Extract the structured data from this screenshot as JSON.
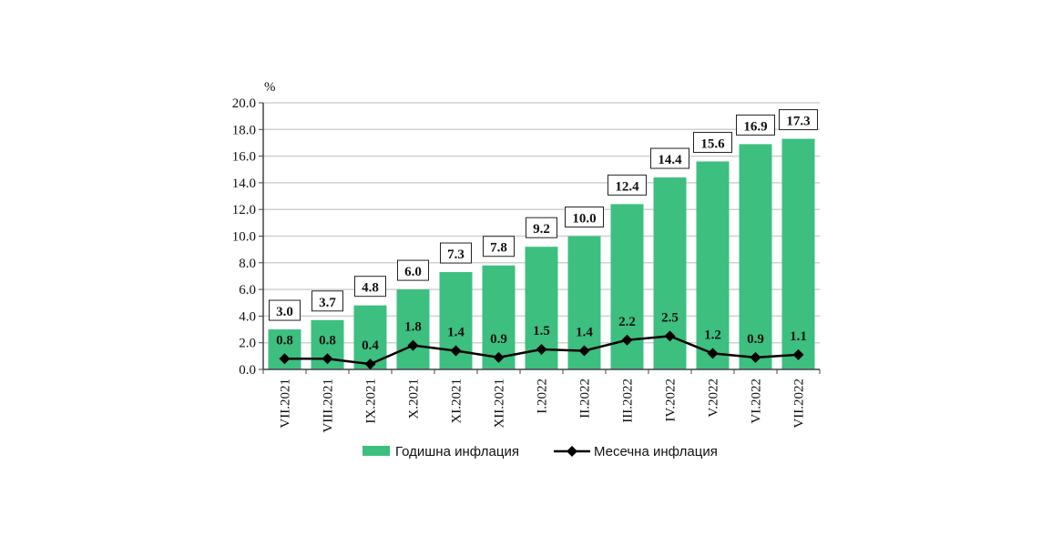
{
  "chart_data": {
    "type": "bar",
    "ylabel": "%",
    "ylim": [
      0,
      20
    ],
    "yticks": [
      "0.0",
      "2.0",
      "4.0",
      "6.0",
      "8.0",
      "10.0",
      "12.0",
      "14.0",
      "16.0",
      "18.0",
      "20.0"
    ],
    "grid": true,
    "legend_position": "bottom",
    "categories": [
      "VII.2021",
      "VIII.2021",
      "IX.2021",
      "X.2021",
      "XI.2021",
      "XII.2021",
      "I.2022",
      "II.2022",
      "III.2022",
      "IV.2022",
      "V.2022",
      "VI.2022",
      "VII.2022"
    ],
    "series": [
      {
        "name": "Годишна инфлация",
        "type": "bar",
        "color": "#3dbf7f",
        "values": [
          3.0,
          3.7,
          4.8,
          6.0,
          7.3,
          7.8,
          9.2,
          10.0,
          12.4,
          14.4,
          15.6,
          16.9,
          17.3
        ],
        "labels": [
          "3.0",
          "3.7",
          "4.8",
          "6.0",
          "7.3",
          "7.8",
          "9.2",
          "10.0",
          "12.4",
          "14.4",
          "15.6",
          "16.9",
          "17.3"
        ]
      },
      {
        "name": "Месечна инфлация",
        "type": "line",
        "color": "#000000",
        "marker": "diamond",
        "values": [
          0.8,
          0.8,
          0.4,
          1.8,
          1.4,
          0.9,
          1.5,
          1.4,
          2.2,
          2.5,
          1.2,
          0.9,
          1.1
        ],
        "labels": [
          "0.8",
          "0.8",
          "0.4",
          "1.8",
          "1.4",
          "0.9",
          "1.5",
          "1.4",
          "2.2",
          "2.5",
          "1.2",
          "0.9",
          "1.1"
        ]
      }
    ]
  }
}
